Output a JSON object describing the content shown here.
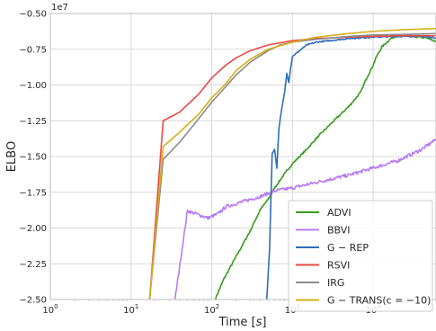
{
  "chart_data": {
    "type": "line",
    "xlabel": "Time [s]",
    "ylabel": "ELBO",
    "y_offset_label": "1e7",
    "xscale": "log",
    "xlim": [
      1,
      60000
    ],
    "ylim": [
      -2.5,
      -0.5
    ],
    "x_ticks": [
      1,
      10,
      100,
      1000,
      10000
    ],
    "x_tick_labels": [
      {
        "base": "10",
        "exp": "0"
      },
      {
        "base": "10",
        "exp": "1"
      },
      {
        "base": "10",
        "exp": "2"
      },
      {
        "base": "10",
        "exp": "3"
      },
      {
        "base": "10",
        "exp": "4"
      }
    ],
    "y_ticks": [
      -2.5,
      -2.25,
      -2.0,
      -1.75,
      -1.5,
      -1.25,
      -1.0,
      -0.75,
      -0.5
    ],
    "y_tick_labels": [
      "−2.50",
      "−2.25",
      "−2.00",
      "−1.75",
      "−1.50",
      "−1.25",
      "−1.00",
      "−0.75",
      "−0.50"
    ],
    "grid": true,
    "legend_position": "lower-right",
    "series": [
      {
        "name": "ADVI",
        "color": "#3a9a1f",
        "noise": 0.006,
        "points": [
          [
            110,
            -2.5
          ],
          [
            140,
            -2.36
          ],
          [
            200,
            -2.2
          ],
          [
            300,
            -2.02
          ],
          [
            400,
            -1.87
          ],
          [
            500,
            -1.8
          ],
          [
            600,
            -1.72
          ],
          [
            800,
            -1.62
          ],
          [
            1000,
            -1.55
          ],
          [
            1500,
            -1.45
          ],
          [
            2000,
            -1.37
          ],
          [
            3000,
            -1.27
          ],
          [
            5000,
            -1.15
          ],
          [
            7000,
            -1.05
          ],
          [
            8000,
            -0.97
          ],
          [
            10000,
            -0.86
          ],
          [
            11000,
            -0.8
          ],
          [
            13000,
            -0.73
          ],
          [
            17000,
            -0.67
          ],
          [
            20000,
            -0.655
          ],
          [
            30000,
            -0.66
          ],
          [
            45000,
            -0.67
          ],
          [
            60000,
            -0.695
          ]
        ]
      },
      {
        "name": "BBVI",
        "color": "#b57ef0",
        "noise": 0.012,
        "points": [
          [
            35,
            -2.5
          ],
          [
            50,
            -1.88
          ],
          [
            90,
            -1.93
          ],
          [
            120,
            -1.9
          ],
          [
            150,
            -1.85
          ],
          [
            200,
            -1.83
          ],
          [
            300,
            -1.8
          ],
          [
            400,
            -1.78
          ],
          [
            600,
            -1.74
          ],
          [
            1000,
            -1.72
          ],
          [
            2000,
            -1.68
          ],
          [
            5000,
            -1.63
          ],
          [
            10000,
            -1.58
          ],
          [
            20000,
            -1.53
          ],
          [
            40000,
            -1.45
          ],
          [
            60000,
            -1.38
          ]
        ]
      },
      {
        "name": "G − REP",
        "color": "#2f6db8",
        "noise": 0.004,
        "points": [
          [
            480,
            -2.5
          ],
          [
            520,
            -2.15
          ],
          [
            560,
            -1.48
          ],
          [
            600,
            -1.45
          ],
          [
            640,
            -1.58
          ],
          [
            680,
            -1.3
          ],
          [
            720,
            -1.2
          ],
          [
            800,
            -1.05
          ],
          [
            850,
            -0.92
          ],
          [
            900,
            -0.98
          ],
          [
            950,
            -0.88
          ],
          [
            1000,
            -0.8
          ],
          [
            1500,
            -0.72
          ],
          [
            2000,
            -0.7
          ],
          [
            5000,
            -0.675
          ],
          [
            10000,
            -0.665
          ],
          [
            20000,
            -0.66
          ],
          [
            40000,
            -0.66
          ],
          [
            60000,
            -0.67
          ]
        ]
      },
      {
        "name": "RSVI",
        "color": "#ee4747",
        "noise": 0,
        "points": [
          [
            17,
            -2.5
          ],
          [
            25,
            -1.25
          ],
          [
            40,
            -1.19
          ],
          [
            70,
            -1.06
          ],
          [
            100,
            -0.95
          ],
          [
            150,
            -0.86
          ],
          [
            200,
            -0.81
          ],
          [
            300,
            -0.76
          ],
          [
            500,
            -0.72
          ],
          [
            1000,
            -0.69
          ],
          [
            2000,
            -0.675
          ],
          [
            5000,
            -0.665
          ],
          [
            10000,
            -0.66
          ],
          [
            20000,
            -0.655
          ],
          [
            60000,
            -0.655
          ]
        ]
      },
      {
        "name": "IRG",
        "color": "#8c8c8c",
        "noise": 0,
        "points": [
          [
            17,
            -2.5
          ],
          [
            25,
            -1.52
          ],
          [
            40,
            -1.4
          ],
          [
            70,
            -1.23
          ],
          [
            100,
            -1.12
          ],
          [
            150,
            -1.01
          ],
          [
            200,
            -0.93
          ],
          [
            300,
            -0.84
          ],
          [
            500,
            -0.76
          ],
          [
            700,
            -0.72
          ],
          [
            1000,
            -0.7
          ],
          [
            2000,
            -0.68
          ],
          [
            5000,
            -0.66
          ],
          [
            10000,
            -0.65
          ],
          [
            30000,
            -0.645
          ],
          [
            60000,
            -0.64
          ]
        ]
      },
      {
        "name": "G − TRANS(c = −10)",
        "color": "#d4b01a",
        "noise": 0,
        "points": [
          [
            17,
            -2.5
          ],
          [
            25,
            -1.43
          ],
          [
            40,
            -1.33
          ],
          [
            70,
            -1.2
          ],
          [
            100,
            -1.09
          ],
          [
            150,
            -0.99
          ],
          [
            200,
            -0.9
          ],
          [
            300,
            -0.82
          ],
          [
            500,
            -0.75
          ],
          [
            1000,
            -0.7
          ],
          [
            2000,
            -0.665
          ],
          [
            5000,
            -0.64
          ],
          [
            10000,
            -0.625
          ],
          [
            20000,
            -0.615
          ],
          [
            60000,
            -0.605
          ]
        ]
      }
    ]
  }
}
